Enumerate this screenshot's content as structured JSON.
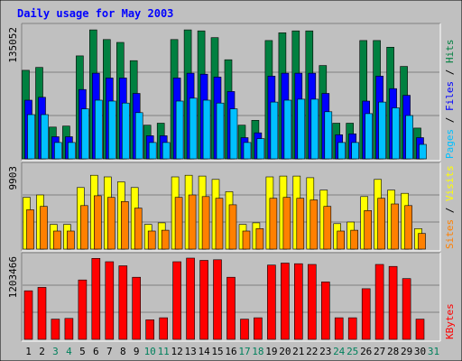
{
  "chart_data": {
    "type": "bar",
    "title": "Daily usage for May 2003",
    "categories": [
      "1",
      "2",
      "3",
      "4",
      "5",
      "6",
      "7",
      "8",
      "9",
      "10",
      "11",
      "12",
      "13",
      "14",
      "15",
      "16",
      "17",
      "18",
      "19",
      "20",
      "21",
      "22",
      "23",
      "24",
      "25",
      "26",
      "27",
      "28",
      "29",
      "30",
      "31"
    ],
    "weekend_days": [
      "3",
      "4",
      "10",
      "11",
      "17",
      "18",
      "24",
      "25",
      "31"
    ],
    "grid": true,
    "legend": "right side, vertical text",
    "panels": [
      {
        "name": "hits_files_pages",
        "max_label": "135052",
        "ylim": [
          0,
          135052
        ],
        "legend_parts": [
          "Pages",
          "Files",
          "Hits"
        ],
        "series": [
          {
            "name": "Hits",
            "color": "#008040",
            "values": [
              92000,
              95000,
              33000,
              34000,
              107000,
              134000,
              124000,
              121000,
              102000,
              35000,
              37000,
              124000,
              134000,
              133000,
              126000,
              103000,
              35000,
              40000,
              123000,
              131000,
              133000,
              133000,
              97000,
              37000,
              37000,
              123000,
              123000,
              116000,
              96000,
              32000,
              0
            ]
          },
          {
            "name": "Files",
            "color": "#0000ff",
            "values": [
              61000,
              64000,
              23000,
              23000,
              72000,
              89000,
              84000,
              84000,
              68000,
              24000,
              24000,
              84000,
              89000,
              88000,
              85000,
              70000,
              22000,
              27000,
              86000,
              89000,
              89000,
              89000,
              68000,
              25000,
              26000,
              60000,
              86000,
              73000,
              66000,
              22000,
              0
            ]
          },
          {
            "name": "Pages",
            "color": "#00c0ff",
            "values": [
              46000,
              46000,
              17000,
              17000,
              52000,
              61000,
              60000,
              58000,
              48000,
              17000,
              17000,
              60000,
              63000,
              61000,
              58000,
              52000,
              17000,
              21000,
              59000,
              61000,
              62000,
              62000,
              49000,
              17000,
              17000,
              47000,
              59000,
              53000,
              45000,
              15000,
              0
            ]
          }
        ]
      },
      {
        "name": "visits_sites",
        "max_label": "9903",
        "ylim": [
          0,
          9903
        ],
        "legend_parts": [
          "Sites",
          "Visits"
        ],
        "series": [
          {
            "name": "Visits",
            "color": "#ffff00",
            "values": [
              6300,
              6600,
              3000,
              3000,
              7500,
              9000,
              8800,
              8200,
              7500,
              3000,
              3200,
              8800,
              9000,
              8900,
              8500,
              7000,
              3000,
              3200,
              8800,
              8900,
              8900,
              8700,
              7200,
              3100,
              3300,
              6400,
              8500,
              7200,
              6800,
              2500,
              0
            ]
          },
          {
            "name": "Sites",
            "color": "#ff8000",
            "values": [
              4800,
              5200,
              2200,
              2200,
              5300,
              6500,
              6300,
              5800,
              5000,
              2200,
              2300,
              6300,
              6600,
              6400,
              6200,
              5400,
              2200,
              2500,
              6200,
              6300,
              6200,
              6000,
              5200,
              2200,
              2300,
              4700,
              6200,
              5500,
              5300,
              1900,
              0
            ]
          }
        ]
      },
      {
        "name": "kbytes",
        "max_label": "1203466",
        "ylim": [
          0,
          1203466
        ],
        "legend_parts": [
          "KBytes"
        ],
        "series": [
          {
            "name": "KBytes",
            "color": "#ff0000",
            "values": [
              720000,
              770000,
              300000,
              310000,
              880000,
              1200000,
              1150000,
              1090000,
              920000,
              290000,
              320000,
              1150000,
              1203466,
              1170000,
              1180000,
              920000,
              300000,
              320000,
              1100000,
              1130000,
              1120000,
              1110000,
              850000,
              320000,
              320000,
              750000,
              1110000,
              1080000,
              900000,
              300000,
              0
            ]
          }
        ]
      }
    ]
  }
}
